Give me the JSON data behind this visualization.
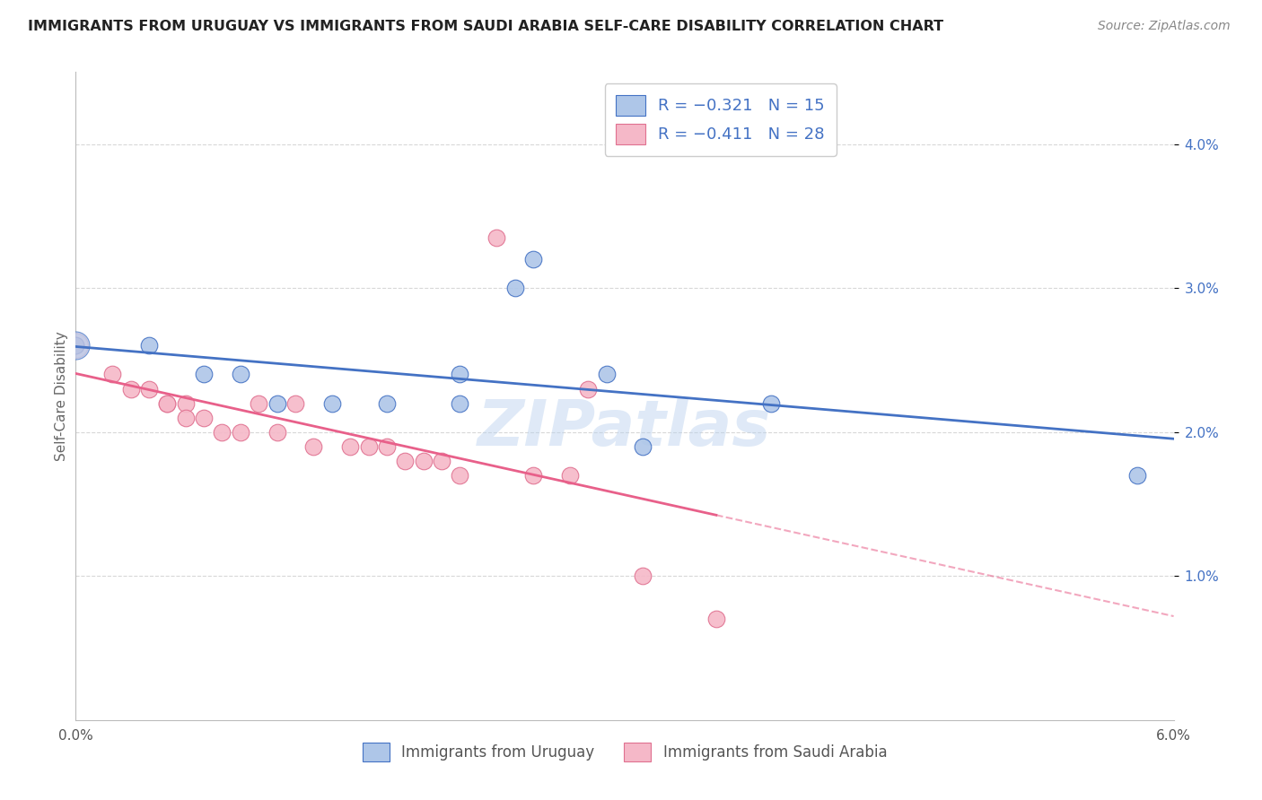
{
  "title": "IMMIGRANTS FROM URUGUAY VS IMMIGRANTS FROM SAUDI ARABIA SELF-CARE DISABILITY CORRELATION CHART",
  "source": "Source: ZipAtlas.com",
  "ylabel": "Self-Care Disability",
  "xmin": 0.0,
  "xmax": 0.06,
  "ymin": 0.0,
  "ymax": 0.045,
  "yticks": [
    0.01,
    0.02,
    0.03,
    0.04
  ],
  "ytick_labels": [
    "1.0%",
    "2.0%",
    "3.0%",
    "4.0%"
  ],
  "grid_color": "#d8d8d8",
  "watermark": "ZIPatlas",
  "uruguay_color": "#aec6e8",
  "saudi_color": "#f5b8c8",
  "uruguay_line_color": "#4472c4",
  "saudi_line_color": "#e8608a",
  "uruguay_scatter": [
    [
      0.0,
      0.026
    ],
    [
      0.004,
      0.026
    ],
    [
      0.007,
      0.024
    ],
    [
      0.009,
      0.024
    ],
    [
      0.011,
      0.022
    ],
    [
      0.014,
      0.022
    ],
    [
      0.017,
      0.022
    ],
    [
      0.021,
      0.022
    ],
    [
      0.021,
      0.024
    ],
    [
      0.024,
      0.03
    ],
    [
      0.025,
      0.032
    ],
    [
      0.029,
      0.024
    ],
    [
      0.031,
      0.019
    ],
    [
      0.038,
      0.022
    ],
    [
      0.058,
      0.017
    ]
  ],
  "saudi_scatter": [
    [
      0.0,
      0.026
    ],
    [
      0.002,
      0.024
    ],
    [
      0.003,
      0.023
    ],
    [
      0.004,
      0.023
    ],
    [
      0.005,
      0.022
    ],
    [
      0.005,
      0.022
    ],
    [
      0.006,
      0.022
    ],
    [
      0.006,
      0.021
    ],
    [
      0.007,
      0.021
    ],
    [
      0.008,
      0.02
    ],
    [
      0.009,
      0.02
    ],
    [
      0.01,
      0.022
    ],
    [
      0.011,
      0.02
    ],
    [
      0.012,
      0.022
    ],
    [
      0.013,
      0.019
    ],
    [
      0.015,
      0.019
    ],
    [
      0.016,
      0.019
    ],
    [
      0.017,
      0.019
    ],
    [
      0.018,
      0.018
    ],
    [
      0.019,
      0.018
    ],
    [
      0.02,
      0.018
    ],
    [
      0.021,
      0.017
    ],
    [
      0.023,
      0.0335
    ],
    [
      0.025,
      0.017
    ],
    [
      0.027,
      0.017
    ],
    [
      0.028,
      0.023
    ],
    [
      0.031,
      0.01
    ],
    [
      0.035,
      0.007
    ]
  ],
  "bg_color": "#ffffff"
}
